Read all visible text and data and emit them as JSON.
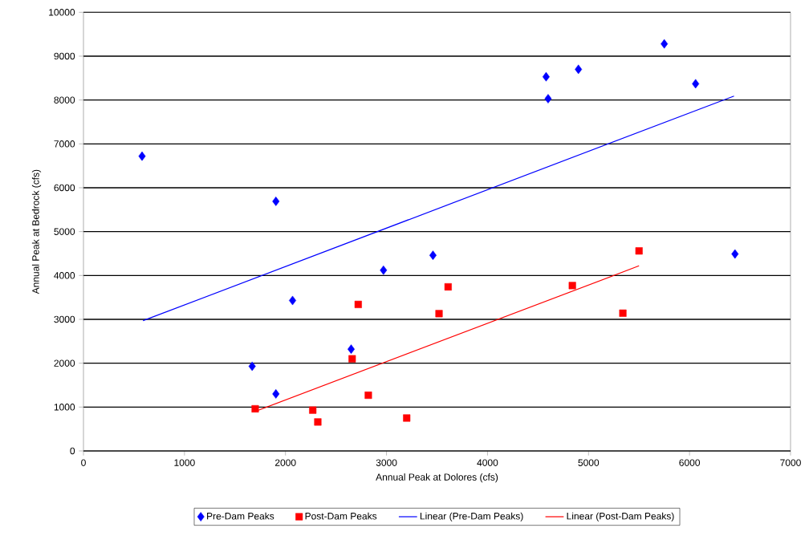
{
  "chart_data": {
    "type": "scatter",
    "xlabel": "Annual Peak at Dolores (cfs)",
    "ylabel": "Annual Peak at Bedrock (cfs)",
    "xlim": [
      0,
      7000
    ],
    "xticks": [
      0,
      1000,
      2000,
      3000,
      4000,
      5000,
      6000,
      7000
    ],
    "ylim": [
      0,
      10000
    ],
    "yticks": [
      0,
      1000,
      2000,
      3000,
      4000,
      5000,
      6000,
      7000,
      8000,
      9000,
      10000
    ],
    "grid": "y",
    "legend": "bottom",
    "series": [
      {
        "name": "Pre-Dam Peaks",
        "marker": "diamond",
        "color": "#0000ff",
        "x": [
          580,
          1905,
          3460,
          2970,
          2070,
          2650,
          1670,
          1905,
          4580,
          4600,
          4900,
          5750,
          6060,
          6450
        ],
        "values": [
          6720,
          5690,
          4460,
          4120,
          3430,
          2320,
          1930,
          1300,
          8530,
          8030,
          8700,
          9280,
          8370,
          4490
        ]
      },
      {
        "name": "Post-Dam Peaks",
        "marker": "square",
        "color": "#ff0000",
        "x": [
          2720,
          3520,
          2660,
          2820,
          3200,
          1700,
          2270,
          2320,
          3610,
          4840,
          5500,
          5340
        ],
        "values": [
          3340,
          3130,
          2100,
          1270,
          750,
          960,
          930,
          660,
          3740,
          3770,
          4560,
          3140
        ]
      },
      {
        "name": "Linear (Pre-Dam Peaks)",
        "type": "line",
        "marker": "none",
        "color": "#0000ff",
        "x": [
          590,
          6440
        ],
        "values": [
          2970,
          8090
        ]
      },
      {
        "name": "Linear (Post-Dam Peaks)",
        "type": "line",
        "marker": "none",
        "color": "#ff0000",
        "x": [
          1700,
          5500
        ],
        "values": [
          900,
          4220
        ]
      }
    ]
  }
}
